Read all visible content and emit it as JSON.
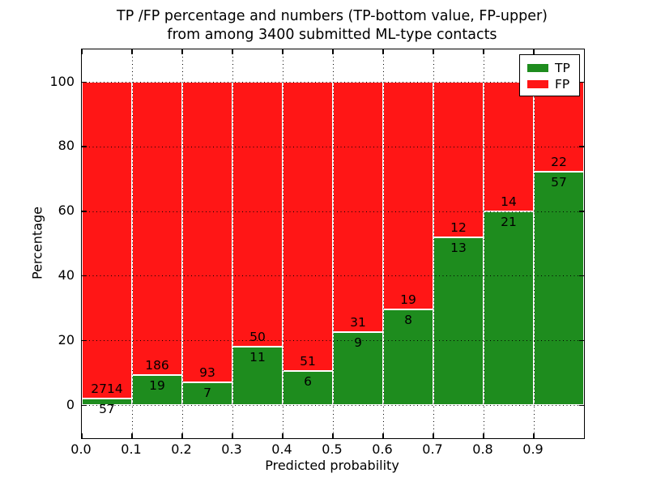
{
  "chart_data": {
    "type": "bar",
    "stacked": true,
    "title_line1": "TP /FP percentage and numbers (TP-bottom value, FP-upper)",
    "title_line2": "from among 3400 submitted ML-type contacts",
    "xlabel": "Predicted probability",
    "ylabel": "Percentage",
    "x_tick_labels": [
      "0.0",
      "0.1",
      "0.2",
      "0.3",
      "0.4",
      "0.5",
      "0.6",
      "0.7",
      "0.8",
      "0.9"
    ],
    "y_ticks": [
      0,
      20,
      40,
      60,
      80,
      100
    ],
    "y_tick_labels": [
      "0",
      "20",
      "40",
      "60",
      "80",
      "100"
    ],
    "xlim": [
      0.0,
      1.0
    ],
    "ylim": [
      -10.3,
      109.9
    ],
    "bin_width": 0.1,
    "grid": true,
    "x_bins": [
      "0.0-0.1",
      "0.1-0.2",
      "0.2-0.3",
      "0.3-0.4",
      "0.4-0.5",
      "0.5-0.6",
      "0.6-0.7",
      "0.7-0.8",
      "0.8-0.9",
      "0.9-1.0"
    ],
    "series": [
      {
        "name": "TP",
        "counts": [
          57,
          19,
          7,
          11,
          6,
          9,
          8,
          13,
          21,
          57
        ],
        "pct": [
          2.06,
          9.27,
          7.0,
          18.03,
          10.53,
          22.5,
          29.63,
          52.0,
          60.0,
          72.15
        ]
      },
      {
        "name": "FP",
        "counts": [
          2714,
          186,
          93,
          50,
          51,
          31,
          19,
          12,
          14,
          22
        ],
        "pct": [
          97.94,
          90.73,
          93.0,
          81.97,
          89.47,
          77.5,
          70.37,
          48.0,
          40.0,
          27.85
        ]
      }
    ],
    "total_contacts": 3400,
    "legend": {
      "position": "upper right",
      "items": [
        {
          "label": "TP",
          "color": "#1e8c1e"
        },
        {
          "label": "FP",
          "color": "#ff1616"
        }
      ]
    }
  },
  "colors": {
    "tp": "#1e8c1e",
    "fp": "#ff1616",
    "bar_edge": "#ffffff",
    "grid": "#000000",
    "text": "#000000",
    "background": "#ffffff"
  }
}
